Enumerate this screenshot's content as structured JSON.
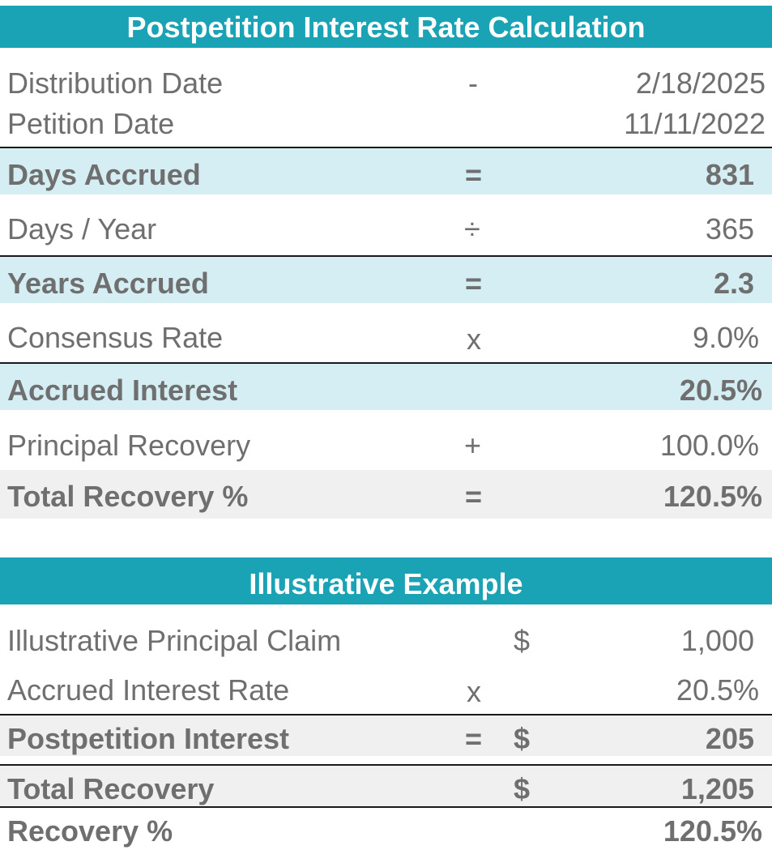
{
  "section1": {
    "title": "Postpetition Interest Rate Calculation",
    "rows": [
      {
        "label": "Distribution Date",
        "op": "-",
        "value": "2/18/2025"
      },
      {
        "label": "Petition Date",
        "op": "",
        "value": "11/11/2022"
      },
      {
        "label": "Days Accrued",
        "op": "=",
        "value": "831"
      },
      {
        "label": "Days / Year",
        "op": "÷",
        "value": "365"
      },
      {
        "label": "Years Accrued",
        "op": "=",
        "value": "2.3"
      },
      {
        "label": "Consensus Rate",
        "op": "x",
        "value": "9.0%"
      },
      {
        "label": "Accrued Interest",
        "op": "",
        "value": "20.5%"
      },
      {
        "label": "Principal Recovery",
        "op": "+",
        "value": "100.0%"
      },
      {
        "label": "Total Recovery %",
        "op": "=",
        "value": "120.5%"
      }
    ]
  },
  "section2": {
    "title": "Illustrative Example",
    "rows": [
      {
        "label": "Illustrative Principal Claim",
        "op": "",
        "currency": "$",
        "value": "1,000"
      },
      {
        "label": "Accrued Interest Rate",
        "op": "x",
        "currency": "",
        "value": "20.5%"
      },
      {
        "label": "Postpetition Interest",
        "op": "=",
        "currency": "$",
        "value": "205"
      },
      {
        "label": "Total Recovery",
        "op": "",
        "currency": "$",
        "value": "1,205"
      },
      {
        "label": "Recovery %",
        "op": "",
        "currency": "",
        "value": "120.5%"
      }
    ]
  },
  "colors": {
    "header_band": "#1aa3b5",
    "highlight_blue": "#d4eef4",
    "highlight_grey": "#f0f0f0",
    "text": "#6f6f6f"
  }
}
